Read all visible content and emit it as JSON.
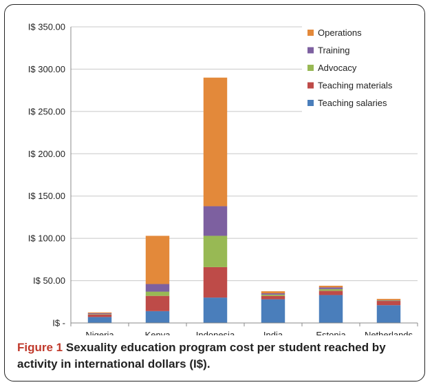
{
  "chart_data": {
    "type": "bar",
    "stacked": true,
    "categories": [
      "Nigeria",
      "Kenya",
      "Indonesia",
      "India",
      "Estonia",
      "Netherlands"
    ],
    "series": [
      {
        "name": "Teaching salaries",
        "color": "#4a7ebb",
        "values": [
          7,
          14,
          30,
          28,
          33,
          21
        ]
      },
      {
        "name": "Teaching materials",
        "color": "#be4b48",
        "values": [
          3,
          18,
          36,
          4,
          5,
          5
        ]
      },
      {
        "name": "Advocacy",
        "color": "#98b954",
        "values": [
          0.5,
          5,
          37,
          1.5,
          2,
          0.5
        ]
      },
      {
        "name": "Training",
        "color": "#7d60a0",
        "values": [
          1,
          9,
          35,
          1.5,
          2,
          0.5
        ]
      },
      {
        "name": "Operations",
        "color": "#e3893a",
        "values": [
          1,
          57,
          152,
          2.5,
          2,
          1.5
        ]
      }
    ],
    "yticks": [
      "I$ -",
      "I$ 50.00",
      "I$ 100.00",
      "I$ 150.00",
      "I$ 200.00",
      "I$ 250.00",
      "I$ 300.00",
      "I$ 350.00"
    ],
    "ylim": [
      0,
      350
    ],
    "ystep": 50,
    "grid": true,
    "legend_position": "top-right",
    "legend_order": [
      "Operations",
      "Training",
      "Advocacy",
      "Teaching materials",
      "Teaching salaries"
    ]
  },
  "caption": {
    "figure_label": "Figure 1",
    "text": "Sexuality education program cost per student reached by activity in international dollars (I$)."
  }
}
